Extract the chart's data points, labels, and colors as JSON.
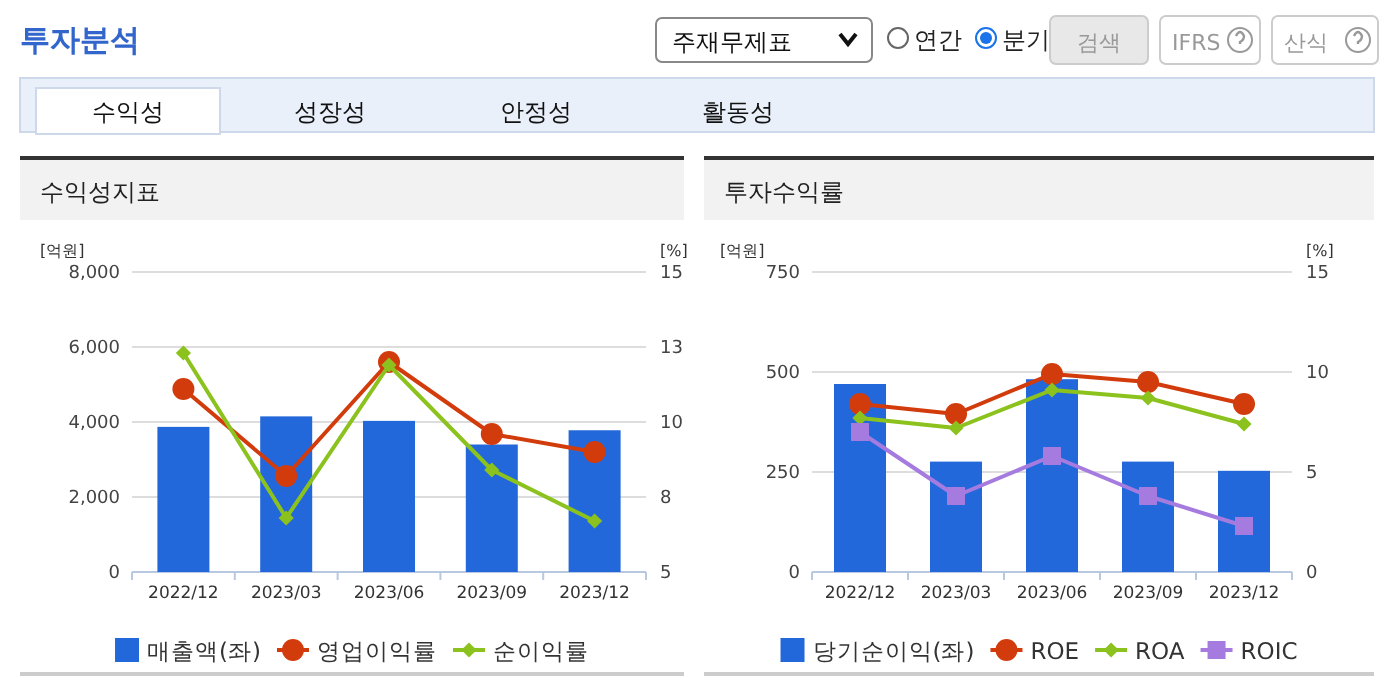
{
  "chart_data": [
    {
      "type": "other",
      "title": "투자분석",
      "annotations": [
        "주재무제표",
        "연간",
        "분기",
        "검색",
        "IFRS",
        "산식",
        "수익성",
        "성장성",
        "안정성",
        "활동성"
      ]
    },
    {
      "type": "bar",
      "title": "수익성지표",
      "ylabel": "[억원]",
      "y2label": "[%]",
      "categories": [
        "2022/12",
        "2023/03",
        "2023/06",
        "2023/09",
        "2023/12"
      ],
      "ylim": [
        0,
        8000
      ],
      "yticks": [
        0,
        {
          "value": 2000,
          "label": "2,000"
        },
        {
          "value": 4000,
          "label": "4,000"
        },
        {
          "value": 6000,
          "label": "6,000"
        },
        {
          "value": 8000,
          "label": "8,000"
        }
      ],
      "y2lim": [
        5,
        15
      ],
      "y2ticks": [
        5,
        {
          "value": 7.5,
          "label": "8"
        },
        10,
        {
          "value": 12.5,
          "label": "13"
        },
        15
      ],
      "grid": "y",
      "legend": "bottom",
      "series": [
        {
          "name": "매출액(좌)",
          "type": "bar",
          "color": "#2368db",
          "values": [
            3870,
            4150,
            4030,
            3400,
            3780
          ]
        },
        {
          "name": "영업이익률",
          "type": "line",
          "axis": "y2",
          "marker": "circle",
          "color": "#d23c0c",
          "values": [
            11.1,
            8.2,
            12.0,
            9.6,
            9.0
          ]
        },
        {
          "name": "순이익률",
          "type": "line",
          "axis": "y2",
          "marker": "diamond",
          "color": "#8cc21d",
          "values": [
            12.3,
            6.8,
            11.9,
            8.4,
            6.7
          ]
        }
      ]
    },
    {
      "type": "bar",
      "title": "투자수익률",
      "ylabel": "[억원]",
      "y2label": "[%]",
      "categories": [
        "2022/12",
        "2023/03",
        "2023/06",
        "2023/09",
        "2023/12"
      ],
      "ylim": [
        0,
        750
      ],
      "yticks": [
        0,
        250,
        500,
        750
      ],
      "y2lim": [
        0,
        15
      ],
      "y2ticks": [
        0,
        5,
        10,
        15
      ],
      "grid": "y",
      "legend": "bottom",
      "series": [
        {
          "name": "당기순이익(좌)",
          "type": "bar",
          "color": "#2368db",
          "values": [
            470,
            276,
            482,
            276,
            253
          ]
        },
        {
          "name": "ROE",
          "type": "line",
          "axis": "y2",
          "marker": "circle",
          "color": "#d23c0c",
          "values": [
            8.4,
            7.9,
            9.9,
            9.5,
            8.4
          ]
        },
        {
          "name": "ROA",
          "type": "line",
          "axis": "y2",
          "marker": "diamond",
          "color": "#8cc21d",
          "values": [
            7.7,
            7.2,
            9.1,
            8.7,
            7.4
          ]
        },
        {
          "name": "ROIC",
          "type": "line",
          "axis": "y2",
          "marker": "square",
          "color": "#a57be0",
          "values": [
            7.0,
            3.8,
            5.8,
            3.8,
            2.3
          ]
        }
      ]
    }
  ]
}
